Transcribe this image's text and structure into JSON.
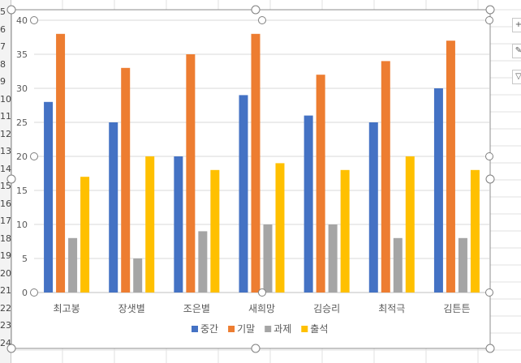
{
  "row_numbers": [
    "5",
    "6",
    "7",
    "8",
    "9",
    "10",
    "11",
    "12",
    "13",
    "14",
    "15",
    "16",
    "17",
    "18",
    "19",
    "20",
    "21",
    "22",
    "23",
    "24"
  ],
  "side_buttons": [
    {
      "icon": "plus-icon",
      "glyph": "+"
    },
    {
      "icon": "brush-icon",
      "glyph": "✎"
    },
    {
      "icon": "filter-icon",
      "glyph": "▽"
    }
  ],
  "chart_data": {
    "type": "bar",
    "categories": [
      "최고봉",
      "장샛별",
      "조은별",
      "새희망",
      "김승리",
      "최적극",
      "김튼튼"
    ],
    "series": [
      {
        "name": "중간",
        "color": "#4472c4",
        "values": [
          28,
          25,
          20,
          29,
          26,
          25,
          30
        ]
      },
      {
        "name": "기말",
        "color": "#ed7d31",
        "values": [
          38,
          33,
          35,
          38,
          32,
          34,
          37
        ]
      },
      {
        "name": "과제",
        "color": "#a5a5a5",
        "values": [
          8,
          5,
          9,
          10,
          10,
          8,
          8
        ]
      },
      {
        "name": "출석",
        "color": "#ffc000",
        "values": [
          17,
          20,
          18,
          19,
          18,
          20,
          18
        ]
      }
    ],
    "ylim": [
      0,
      40
    ],
    "yticks": [
      "0",
      "5",
      "10",
      "15",
      "20",
      "25",
      "30",
      "35",
      "40"
    ],
    "grid": true,
    "legend": "bottom"
  }
}
